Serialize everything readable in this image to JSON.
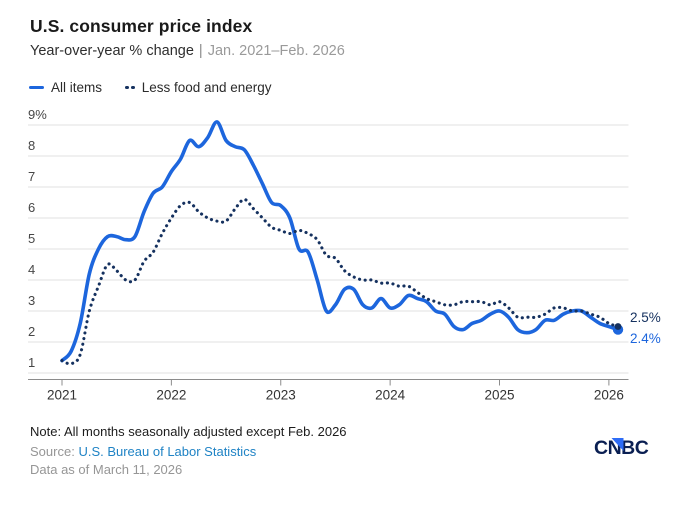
{
  "header": {
    "title": "U.S. consumer price index",
    "subtitle_main": "Year-over-year % change",
    "subtitle_separator": "|",
    "subtitle_range": "Jan. 2021–Feb. 2026"
  },
  "legend": {
    "position": "top-left",
    "items": [
      {
        "label": "All items",
        "swatch": "solid-blue-line"
      },
      {
        "label": "Less food and energy",
        "swatch": "dotted-navy-line"
      }
    ]
  },
  "chart_data": {
    "type": "line",
    "title": "U.S. consumer price index",
    "subtitle": "Year-over-year % change",
    "date_range": "Jan. 2021–Feb. 2026",
    "x_unit": "month",
    "x_start": "2021-01",
    "x_end": "2026-02",
    "ylim": [
      1,
      9
    ],
    "grid": "horizontal",
    "y_ticks": [
      {
        "value": 9,
        "label": "9%"
      },
      {
        "value": 8,
        "label": "8"
      },
      {
        "value": 7,
        "label": "7"
      },
      {
        "value": 6,
        "label": "6"
      },
      {
        "value": 5,
        "label": "5"
      },
      {
        "value": 4,
        "label": "4"
      },
      {
        "value": 3,
        "label": "3"
      },
      {
        "value": 2,
        "label": "2"
      },
      {
        "value": 1,
        "label": "1"
      }
    ],
    "x_ticks": [
      {
        "month_index": 0,
        "label": "2021"
      },
      {
        "month_index": 12,
        "label": "2022"
      },
      {
        "month_index": 24,
        "label": "2023"
      },
      {
        "month_index": 36,
        "label": "2024"
      },
      {
        "month_index": 48,
        "label": "2025"
      },
      {
        "month_index": 60,
        "label": "2026"
      }
    ],
    "series": [
      {
        "id": "all-items",
        "name": "All items",
        "style": "solid",
        "color": "#1d66dd",
        "end_label": "2.4%",
        "end_value": 2.4,
        "values": [
          1.4,
          1.7,
          2.6,
          4.2,
          5.0,
          5.4,
          5.4,
          5.3,
          5.4,
          6.2,
          6.8,
          7.0,
          7.5,
          7.9,
          8.5,
          8.3,
          8.6,
          9.1,
          8.5,
          8.3,
          8.2,
          7.7,
          7.1,
          6.5,
          6.4,
          6.0,
          5.0,
          4.9,
          4.0,
          3.0,
          3.2,
          3.7,
          3.7,
          3.2,
          3.1,
          3.4,
          3.1,
          3.2,
          3.5,
          3.4,
          3.3,
          3.0,
          2.9,
          2.5,
          2.4,
          2.6,
          2.7,
          2.9,
          3.0,
          2.8,
          2.4,
          2.3,
          2.4,
          2.7,
          2.7,
          2.9,
          3.0,
          3.0,
          2.8,
          2.6,
          2.5,
          2.4
        ]
      },
      {
        "id": "less-food-and-energy",
        "name": "Less food and energy",
        "style": "dotted",
        "color": "#15315f",
        "end_label": "2.5%",
        "end_value": 2.5,
        "values": [
          1.4,
          1.3,
          1.6,
          3.0,
          3.8,
          4.5,
          4.3,
          4.0,
          4.0,
          4.6,
          4.9,
          5.5,
          6.0,
          6.4,
          6.5,
          6.2,
          6.0,
          5.9,
          5.9,
          6.3,
          6.6,
          6.3,
          6.0,
          5.7,
          5.6,
          5.5,
          5.6,
          5.5,
          5.3,
          4.8,
          4.7,
          4.3,
          4.1,
          4.0,
          4.0,
          3.9,
          3.9,
          3.8,
          3.8,
          3.6,
          3.4,
          3.3,
          3.2,
          3.2,
          3.3,
          3.3,
          3.3,
          3.2,
          3.3,
          3.1,
          2.8,
          2.8,
          2.8,
          2.9,
          3.1,
          3.1,
          3.0,
          3.0,
          2.9,
          2.8,
          2.6,
          2.5
        ]
      }
    ]
  },
  "footer": {
    "note": "Note: All months seasonally adjusted except Feb. 2026",
    "source_prefix": "Source:",
    "source_link": "U.S. Bureau of Labor Statistics",
    "data_as_of": "Data as of March 11, 2026",
    "logo": "CNBC"
  },
  "colors": {
    "accent_blue": "#1d66dd",
    "navy": "#15315f",
    "link_blue": "#1f83c5",
    "grid": "#e2e2e2",
    "axis": "#8c8c8c",
    "y_label": "#474747",
    "x_label": "#333333",
    "text_dark": "#1a1a1a",
    "text_gray": "#9a9a9a",
    "logo_navy": "#0a1f52",
    "logo_triangle": "#2e6cf6"
  }
}
